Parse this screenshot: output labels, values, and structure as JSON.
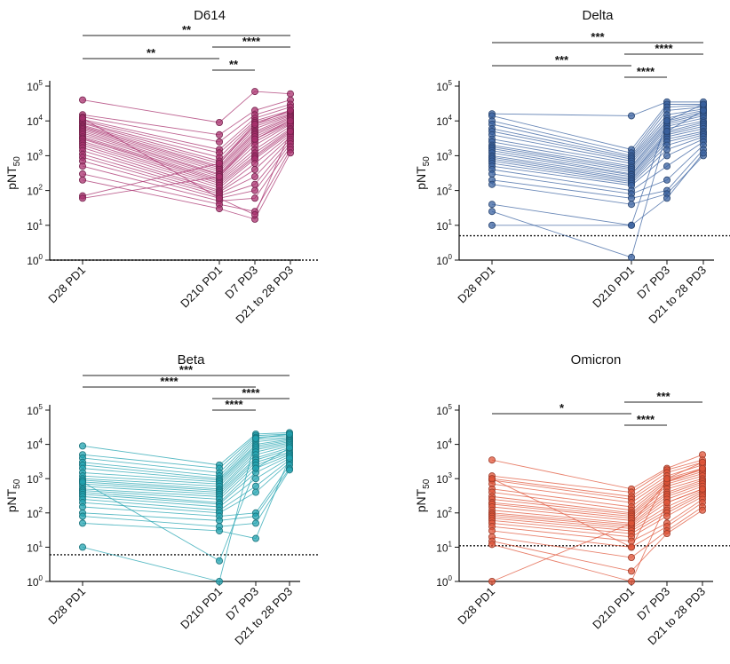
{
  "chart_data": [
    {
      "type": "scatter",
      "title": "D614",
      "ylabel": "pNT50",
      "yscale": "log",
      "ylim": [
        1,
        100000
      ],
      "threshold": 0.07,
      "categories": [
        "D28 PD1",
        "D210 PD1",
        "D7 PD3",
        "D21 to 28 PD3"
      ],
      "color": "#a8306e",
      "comparisons": [
        {
          "from": "D28 PD1",
          "to": "D210 PD1",
          "label": "**"
        },
        {
          "from": "D28 PD1",
          "to": "D21 to 28 PD3",
          "label": "**"
        },
        {
          "from": "D210 PD1",
          "to": "D7 PD3",
          "label": "**"
        },
        {
          "from": "D210 PD1",
          "to": "D21 to 28 PD3",
          "label": "****"
        }
      ],
      "series": [
        [
          40000,
          9000,
          70000,
          60000
        ],
        [
          15000,
          4000,
          20000,
          40000
        ],
        [
          13000,
          2500,
          15000,
          30000
        ],
        [
          11000,
          1500,
          12000,
          25000
        ],
        [
          10000,
          1200,
          10000,
          20000
        ],
        [
          9000,
          900,
          9000,
          18000
        ],
        [
          8500,
          700,
          8000,
          16000
        ],
        [
          7500,
          600,
          7000,
          15000
        ],
        [
          7000,
          500,
          6000,
          14000
        ],
        [
          6500,
          450,
          5000,
          13000
        ],
        [
          6000,
          400,
          4500,
          12000
        ],
        [
          5500,
          350,
          4000,
          11000
        ],
        [
          5000,
          300,
          3500,
          10000
        ],
        [
          4500,
          280,
          3000,
          9000
        ],
        [
          4000,
          250,
          2500,
          8500
        ],
        [
          3500,
          220,
          2000,
          8000
        ],
        [
          3200,
          200,
          1500,
          7000
        ],
        [
          3000,
          180,
          1200,
          6000
        ],
        [
          2600,
          160,
          1000,
          5500
        ],
        [
          2300,
          140,
          900,
          5000
        ],
        [
          2000,
          120,
          800,
          4500
        ],
        [
          1700,
          100,
          600,
          4000
        ],
        [
          1400,
          90,
          400,
          3500
        ],
        [
          1100,
          80,
          250,
          3000
        ],
        [
          900,
          70,
          150,
          2600
        ],
        [
          700,
          60,
          100,
          2200
        ],
        [
          500,
          50,
          60,
          1800
        ],
        [
          300,
          40,
          25,
          1500
        ],
        [
          200,
          30,
          15,
          1200
        ],
        [
          70,
          600,
          8000,
          20000
        ],
        [
          60,
          250,
          3000,
          10000
        ],
        [
          12000,
          60,
          20,
          5000
        ]
      ]
    },
    {
      "type": "scatter",
      "title": "Delta",
      "ylabel": "pNT50",
      "yscale": "log",
      "ylim": [
        1,
        100000
      ],
      "threshold": 5,
      "categories": [
        "D28 PD1",
        "D210 PD1",
        "D7 PD3",
        "D21 to 28 PD3"
      ],
      "color": "#3a62a0",
      "comparisons": [
        {
          "from": "D28 PD1",
          "to": "D210 PD1",
          "label": "***"
        },
        {
          "from": "D28 PD1",
          "to": "D21 to 28 PD3",
          "label": "***"
        },
        {
          "from": "D210 PD1",
          "to": "D7 PD3",
          "label": "****"
        },
        {
          "from": "D210 PD1",
          "to": "D21 to 28 PD3",
          "label": "****"
        }
      ],
      "series": [
        [
          16000,
          14000,
          35000,
          35000
        ],
        [
          14000,
          1500,
          30000,
          30000
        ],
        [
          10000,
          1200,
          25000,
          28000
        ],
        [
          8000,
          1000,
          20000,
          25000
        ],
        [
          6000,
          900,
          15000,
          22000
        ],
        [
          5000,
          800,
          12000,
          20000
        ],
        [
          4000,
          700,
          10000,
          18000
        ],
        [
          3000,
          600,
          9000,
          16000
        ],
        [
          2500,
          500,
          8000,
          14000
        ],
        [
          2000,
          450,
          7000,
          12000
        ],
        [
          1800,
          400,
          6000,
          10000
        ],
        [
          1600,
          350,
          5000,
          9000
        ],
        [
          1400,
          300,
          4500,
          8000
        ],
        [
          1200,
          280,
          4000,
          7000
        ],
        [
          1000,
          250,
          3500,
          6000
        ],
        [
          900,
          220,
          3000,
          5000
        ],
        [
          800,
          200,
          2500,
          4500
        ],
        [
          700,
          180,
          2000,
          4000
        ],
        [
          600,
          160,
          1500,
          3500
        ],
        [
          500,
          140,
          1000,
          3000
        ],
        [
          400,
          100,
          500,
          2500
        ],
        [
          300,
          80,
          200,
          2000
        ],
        [
          200,
          60,
          100,
          1500
        ],
        [
          150,
          40,
          80,
          1000
        ],
        [
          40,
          10,
          60,
          1200
        ],
        [
          25,
          1.2,
          5000,
          20000
        ],
        [
          10,
          10,
          10000,
          30000
        ]
      ]
    },
    {
      "type": "scatter",
      "title": "Beta",
      "ylabel": "pNT50",
      "yscale": "log",
      "ylim": [
        1,
        100000
      ],
      "threshold": 6,
      "categories": [
        "D28 PD1",
        "D210 PD1",
        "D7 PD3",
        "D21 to 28 PD3"
      ],
      "color": "#22a3b0",
      "comparisons": [
        {
          "from": "D28 PD1",
          "to": "D7 PD3",
          "label": "****"
        },
        {
          "from": "D28 PD1",
          "to": "D21 to 28 PD3",
          "label": "***"
        },
        {
          "from": "D210 PD1",
          "to": "D7 PD3",
          "label": "****"
        },
        {
          "from": "D210 PD1",
          "to": "D21 to 28 PD3",
          "label": "****"
        }
      ],
      "series": [
        [
          9000,
          2500,
          20000,
          22000
        ],
        [
          5000,
          2000,
          18000,
          20000
        ],
        [
          4000,
          1500,
          16000,
          18000
        ],
        [
          3000,
          1200,
          14000,
          16000
        ],
        [
          2500,
          1000,
          12000,
          15000
        ],
        [
          2000,
          900,
          10000,
          14000
        ],
        [
          1500,
          800,
          9000,
          13000
        ],
        [
          1200,
          700,
          8000,
          12000
        ],
        [
          1000,
          600,
          7000,
          11000
        ],
        [
          900,
          500,
          6000,
          10000
        ],
        [
          800,
          450,
          5000,
          9000
        ],
        [
          700,
          400,
          4000,
          8000
        ],
        [
          600,
          350,
          3500,
          7000
        ],
        [
          500,
          300,
          3000,
          6000
        ],
        [
          450,
          250,
          2500,
          5500
        ],
        [
          400,
          200,
          2000,
          5000
        ],
        [
          350,
          180,
          1500,
          4500
        ],
        [
          300,
          150,
          1000,
          4000
        ],
        [
          250,
          120,
          600,
          3500
        ],
        [
          200,
          100,
          400,
          3000
        ],
        [
          150,
          80,
          100,
          2500
        ],
        [
          100,
          60,
          80,
          2000
        ],
        [
          80,
          40,
          50,
          1800
        ],
        [
          50,
          30,
          18,
          4000
        ],
        [
          10,
          1,
          15000,
          20000
        ],
        [
          800,
          4,
          2000,
          8000
        ]
      ]
    },
    {
      "type": "scatter",
      "title": "Omicron",
      "ylabel": "pNT50",
      "yscale": "log",
      "ylim": [
        1,
        100000
      ],
      "threshold": 11,
      "categories": [
        "D28 PD1",
        "D210 PD1",
        "D7 PD3",
        "D21 to 28 PD3"
      ],
      "color": "#e0553a",
      "comparisons": [
        {
          "from": "D28 PD1",
          "to": "D210 PD1",
          "label": "*"
        },
        {
          "from": "D210 PD1",
          "to": "D7 PD3",
          "label": "****"
        },
        {
          "from": "D210 PD1",
          "to": "D21 to 28 PD3",
          "label": "***"
        }
      ],
      "series": [
        [
          3500,
          500,
          2000,
          5000
        ],
        [
          1200,
          400,
          1800,
          3500
        ],
        [
          1000,
          300,
          1500,
          3000
        ],
        [
          900,
          250,
          1200,
          2500
        ],
        [
          700,
          200,
          1000,
          2000
        ],
        [
          500,
          150,
          900,
          1800
        ],
        [
          400,
          120,
          800,
          1600
        ],
        [
          300,
          100,
          700,
          1400
        ],
        [
          250,
          90,
          600,
          1200
        ],
        [
          200,
          80,
          500,
          1000
        ],
        [
          180,
          70,
          400,
          900
        ],
        [
          150,
          60,
          350,
          800
        ],
        [
          120,
          50,
          300,
          700
        ],
        [
          100,
          45,
          250,
          600
        ],
        [
          90,
          40,
          200,
          500
        ],
        [
          80,
          35,
          150,
          450
        ],
        [
          70,
          30,
          120,
          400
        ],
        [
          60,
          25,
          100,
          350
        ],
        [
          50,
          20,
          80,
          300
        ],
        [
          40,
          15,
          50,
          250
        ],
        [
          30,
          10,
          40,
          200
        ],
        [
          20,
          5,
          30,
          150
        ],
        [
          15,
          2,
          25,
          120
        ],
        [
          1,
          50,
          800,
          2000
        ],
        [
          12,
          1,
          200,
          500
        ],
        [
          1000,
          10,
          1000,
          3000
        ]
      ]
    }
  ]
}
